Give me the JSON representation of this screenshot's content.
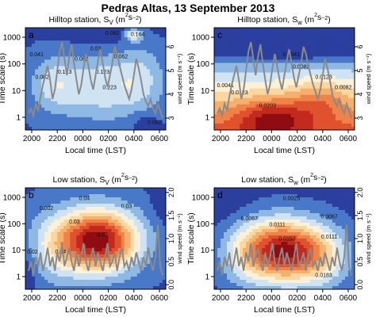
{
  "figure_title": "Pedras Altas, 13 September 2013",
  "colors": {
    "scale": [
      "#2b3f9f",
      "#4a78c8",
      "#8fb8e4",
      "#cfe3f3",
      "#fbf1d9",
      "#fbd6a0",
      "#f6b06d",
      "#ee8248",
      "#e0522d",
      "#c32a1e",
      "#8e0c12"
    ],
    "wind_line": "#8a8a8a"
  },
  "chart_data": [
    {
      "id": "a",
      "panel_label": "a",
      "type": "heatmap",
      "title_main": "Hilltop station, S",
      "title_sub": "V",
      "title_unit": " (m",
      "title_exp": "2",
      "title_unit2": "s",
      "title_exp2": "−2",
      "title_close": ")",
      "xlabel": "Local time (LST)",
      "ylabel": "Time scale (s)",
      "right_label": "wind speed (m s⁻¹)",
      "x_ticks": [
        "2000",
        "2200",
        "0000",
        "0200",
        "0400",
        "0600"
      ],
      "y_ticks": [
        "1",
        "10",
        "100",
        "1000"
      ],
      "right_ticks": [
        "3",
        "4",
        "5",
        "6"
      ],
      "right_range": [
        2.5,
        6.8
      ],
      "field": "hilltop_v",
      "contour_labels": [
        "0.082",
        "0.041",
        "0.123",
        "0.082",
        "0.123",
        "0.223",
        "0.062",
        "0.082",
        "0.03",
        "0.164",
        "0.082"
      ],
      "wind": [
        3.2,
        3.4,
        3.1,
        3.6,
        3.3,
        3.9,
        4.4,
        4.8,
        5.2,
        4.6,
        3.8,
        4.2,
        5.0,
        5.8,
        6.2,
        5.5,
        4.8,
        5.6,
        6.1,
        5.3,
        4.6,
        4.0,
        4.4,
        5.1,
        5.7,
        5.2,
        4.6,
        4.2,
        4.8,
        5.4,
        5.9,
        5.3,
        4.7,
        4.3,
        4.8,
        5.3,
        6.0,
        5.7,
        5.2,
        4.8,
        4.4,
        4.1,
        3.8,
        4.2,
        4.8,
        5.5,
        5.1,
        4.6,
        4.0,
        3.7,
        3.5,
        3.8,
        3.4,
        3.2,
        3.6,
        3.3,
        3.0
      ]
    },
    {
      "id": "c",
      "panel_label": "c",
      "type": "heatmap",
      "title_main": "Hilltop station, S",
      "title_sub": "w",
      "title_unit": " (m",
      "title_exp": "2",
      "title_unit2": "s",
      "title_exp2": "−2",
      "title_close": ")",
      "xlabel": "Local time (LST)",
      "ylabel": "Time scale (s)",
      "right_label": "wind speed (m s⁻¹)",
      "x_ticks": [
        "2000",
        "2200",
        "0000",
        "0200",
        "0400",
        "0600"
      ],
      "y_ticks": [
        "1",
        "10",
        "100",
        "1000"
      ],
      "right_ticks": [
        "3",
        "4",
        "5",
        "6"
      ],
      "right_range": [
        2.5,
        6.8
      ],
      "field": "hilltop_w",
      "contour_labels": [
        "0.0041",
        "0.0123",
        "0.0203",
        "0.0041",
        "0.0082",
        "0.0123",
        "0.0082"
      ],
      "wind": [
        3.2,
        3.4,
        3.1,
        3.6,
        3.3,
        3.9,
        4.4,
        4.8,
        5.2,
        4.6,
        3.8,
        4.2,
        5.0,
        5.8,
        6.2,
        5.5,
        4.8,
        5.6,
        6.1,
        5.3,
        4.6,
        4.0,
        4.4,
        5.1,
        5.7,
        5.2,
        4.6,
        4.2,
        4.8,
        5.4,
        5.9,
        5.3,
        4.7,
        4.3,
        4.8,
        5.3,
        6.0,
        5.7,
        5.2,
        4.8,
        4.4,
        4.1,
        3.8,
        4.2,
        4.8,
        5.5,
        5.1,
        4.6,
        4.0,
        3.7,
        3.5,
        3.8,
        3.4,
        3.2,
        3.6,
        3.3,
        3.0
      ]
    },
    {
      "id": "b",
      "panel_label": "b",
      "type": "heatmap",
      "title_main": "Low station, S",
      "title_sub": "V",
      "title_unit": " (m",
      "title_exp": "2",
      "title_unit2": "s",
      "title_exp2": "−2",
      "title_close": ")",
      "xlabel": "Local time (LST)",
      "ylabel": "Time scale (s)",
      "right_label": "wind speed (m s⁻¹)",
      "x_ticks": [
        "2000",
        "2200",
        "0000",
        "0200",
        "0400",
        "0600"
      ],
      "y_ticks": [
        "1",
        "10",
        "100",
        "1000"
      ],
      "right_ticks": [
        "0.0",
        "0.5",
        "1.0",
        "1.5",
        "2.0"
      ],
      "right_range": [
        -0.1,
        2.1
      ],
      "field": "low_v",
      "contour_labels": [
        "0.002",
        "0.03",
        "0.04",
        "0.03",
        "0.02",
        "0.04",
        "0.07"
      ],
      "wind": [
        0.3,
        0.5,
        0.2,
        0.6,
        0.4,
        0.7,
        0.3,
        0.5,
        0.8,
        0.4,
        0.6,
        0.3,
        0.7,
        0.5,
        0.9,
        0.4,
        0.6,
        0.8,
        0.5,
        0.3,
        0.7,
        0.4,
        0.6,
        0.9,
        0.5,
        0.3,
        0.6,
        0.8,
        0.4,
        0.7,
        0.5,
        0.3,
        0.6,
        0.9,
        0.4,
        0.5,
        0.7,
        0.3,
        0.6,
        0.8,
        0.4,
        0.5,
        0.3,
        0.6,
        0.4,
        0.7,
        0.5,
        0.3,
        0.6,
        0.4,
        0.8,
        0.5,
        0.3,
        0.6,
        1.3,
        0.4,
        0.2
      ]
    },
    {
      "id": "d",
      "panel_label": "d",
      "type": "heatmap",
      "title_main": "Low station, S",
      "title_sub": "w",
      "title_unit": " (m",
      "title_exp": "2",
      "title_unit2": "s",
      "title_exp2": "−2",
      "title_close": ")",
      "xlabel": "Local time (LST)",
      "ylabel": "Time scale (s)",
      "right_label": "wind speed (m s⁻¹)",
      "x_ticks": [
        "2000",
        "2200",
        "0000",
        "0200",
        "0400",
        "0600"
      ],
      "y_ticks": [
        "1",
        "10",
        "100",
        "1000"
      ],
      "right_ticks": [
        "0.0",
        "0.5",
        "1.0",
        "1.5",
        "2.0"
      ],
      "right_range": [
        -0.1,
        2.1
      ],
      "field": "low_w",
      "contour_labels": [
        "0.0025",
        "0.0067",
        "0.0111",
        "0.0153",
        "0.0111",
        "0.0067",
        "0.0183"
      ],
      "wind": [
        0.3,
        0.5,
        0.2,
        0.6,
        0.4,
        0.7,
        0.3,
        0.5,
        0.8,
        0.4,
        0.6,
        0.3,
        0.7,
        0.5,
        0.9,
        0.4,
        0.6,
        0.8,
        0.5,
        0.3,
        0.7,
        0.4,
        0.6,
        0.9,
        0.5,
        0.3,
        0.6,
        0.8,
        0.4,
        0.7,
        0.5,
        0.3,
        0.6,
        0.9,
        0.4,
        0.5,
        0.7,
        0.3,
        0.6,
        0.8,
        0.4,
        0.5,
        0.3,
        0.6,
        0.4,
        0.7,
        0.5,
        0.3,
        0.6,
        0.4,
        0.8,
        0.5,
        0.3,
        0.6,
        1.3,
        0.4,
        0.2
      ]
    }
  ]
}
